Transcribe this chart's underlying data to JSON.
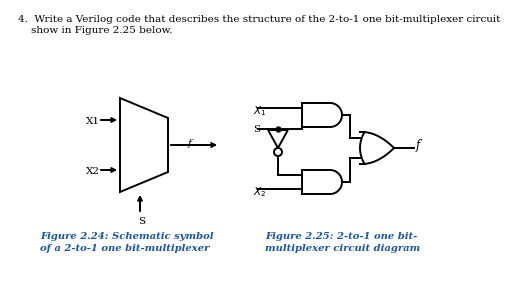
{
  "title_line1": "4.  Write a Verilog code that describes the structure of the 2-to-1 one bit-multiplexer circuit",
  "title_line2": "    show in Figure 2.25 below.",
  "fig224_caption": "Figure 2.24: Schematic symbol\nof a 2-to-1 one bit-multiplexer",
  "fig225_caption": "Figure 2.25: 2-to-1 one bit-\nmultiplexer circuit diagram",
  "caption_color": "#1a55a0",
  "background": "#ffffff",
  "title_fontsize": 7.5,
  "caption_fontsize": 7.2,
  "lw": 1.4
}
